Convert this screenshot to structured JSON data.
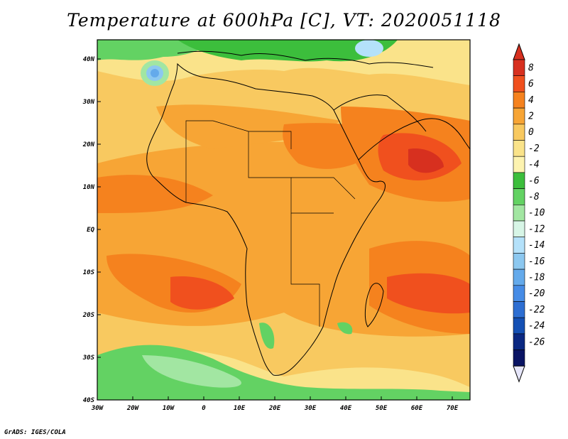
{
  "title": "Temperature at 600hPa [C], VT: 2020051118",
  "credit": "GrADS: IGES/COLA",
  "map": {
    "projection": "lat-lon",
    "lon_range": [
      -30,
      75
    ],
    "lat_range": [
      -40,
      45
    ],
    "lon_ticks": [
      "30W",
      "20W",
      "10W",
      "0",
      "10E",
      "20E",
      "30E",
      "40E",
      "50E",
      "60E",
      "70E"
    ],
    "lat_ticks": [
      "40N",
      "30N",
      "20N",
      "10N",
      "EQ",
      "10S",
      "20S",
      "30S",
      "40S"
    ],
    "variable": "Temperature",
    "level": "600hPa",
    "units": "C",
    "valid_time": "2020051118"
  },
  "colorbar": {
    "labels": [
      "8",
      "6",
      "4",
      "2",
      "0",
      "-2",
      "-4",
      "-6",
      "-8",
      "-10",
      "-12",
      "-14",
      "-16",
      "-18",
      "-20",
      "-22",
      "-24",
      "-26"
    ],
    "colors": [
      "#d7301f",
      "#f0501e",
      "#f5821e",
      "#f7a535",
      "#f8c960",
      "#fae38a",
      "#fdf3b0",
      "#3cbe3c",
      "#63d263",
      "#a2e6a2",
      "#d7f5e6",
      "#b4e1fa",
      "#8cc8f0",
      "#64aaeb",
      "#468ce6",
      "#2d6ed2",
      "#1450b4",
      "#0a2882",
      "#0a1464"
    ],
    "top_cap_color": "#d7301f",
    "bottom_cap_color": "#e6e6fa"
  }
}
